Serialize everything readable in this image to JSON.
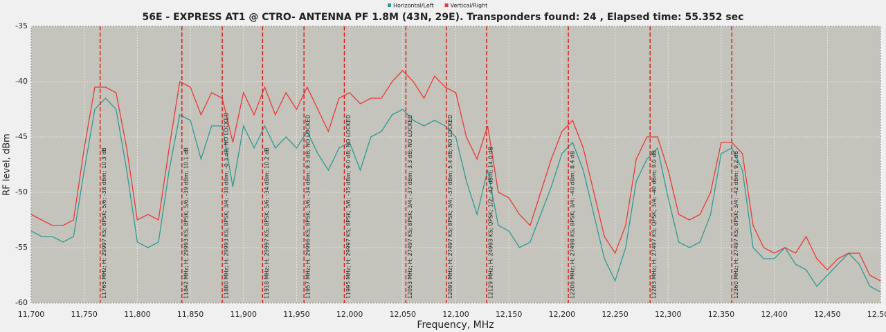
{
  "chart_data": {
    "type": "line",
    "title": "56E - EXPRESS AT1 @ CTRO- ANTENNA PF 1.8M (43N, 29E). Transponders found: 24 , Elapsed time: 55.352 sec",
    "x_label": "Frequency, MHz",
    "y_label": "RF level, dBm",
    "x": [
      11700,
      11710,
      11720,
      11730,
      11740,
      11750,
      11760,
      11770,
      11780,
      11790,
      11800,
      11810,
      11820,
      11830,
      11840,
      11850,
      11860,
      11870,
      11880,
      11890,
      11900,
      11910,
      11920,
      11930,
      11940,
      11950,
      11960,
      11970,
      11980,
      11990,
      12000,
      12010,
      12020,
      12030,
      12040,
      12050,
      12060,
      12070,
      12080,
      12090,
      12100,
      12110,
      12120,
      12130,
      12140,
      12150,
      12160,
      12170,
      12180,
      12190,
      12200,
      12210,
      12220,
      12230,
      12240,
      12250,
      12260,
      12270,
      12280,
      12290,
      12300,
      12310,
      12320,
      12330,
      12340,
      12350,
      12360,
      12370,
      12380,
      12390,
      12400,
      12410,
      12420,
      12430,
      12440,
      12450,
      12460,
      12470,
      12480,
      12490,
      12500
    ],
    "series": [
      {
        "name": "Horizontal/Left",
        "color": "#2e9a94",
        "values": [
          -53.5,
          -54,
          -54,
          -54.5,
          -54,
          -48,
          -42.5,
          -41.5,
          -42.5,
          -48,
          -54.5,
          -55,
          -54.5,
          -48,
          -43,
          -43.5,
          -47,
          -44,
          -44,
          -49.5,
          -44,
          -46,
          -44,
          -46,
          -45,
          -46,
          -44.5,
          -46.5,
          -48,
          -46,
          -45.5,
          -48,
          -45,
          -44.5,
          -43,
          -42.5,
          -43.5,
          -44,
          -43.5,
          -44,
          -45,
          -49,
          -52,
          -48,
          -53,
          -53.5,
          -55,
          -54.5,
          -52,
          -49.5,
          -46.5,
          -45.5,
          -48,
          -52,
          -56,
          -58,
          -55,
          -49,
          -47,
          -46,
          -50.5,
          -54.5,
          -55,
          -54.5,
          -52,
          -46.5,
          -46,
          -48,
          -55,
          -56,
          -56,
          -55,
          -56.5,
          -57,
          -58.5,
          -57.5,
          -56.5,
          -55.5,
          -56.5,
          -58.5,
          -59
        ]
      },
      {
        "name": "Vertical/Right",
        "color": "#e8383a",
        "values": [
          -52,
          -52.5,
          -53,
          -53,
          -52.5,
          -46,
          -40.5,
          -40.5,
          -41,
          -46,
          -52.5,
          -52,
          -52.5,
          -46,
          -40,
          -40.5,
          -43,
          -41,
          -41.5,
          -45.5,
          -41,
          -43,
          -40.5,
          -43,
          -41,
          -42.5,
          -40.5,
          -42.5,
          -44.5,
          -41.5,
          -41,
          -42,
          -41.5,
          -41.5,
          -40,
          -39,
          -40,
          -41.5,
          -39.5,
          -40.5,
          -41,
          -45,
          -47,
          -44,
          -50,
          -50.5,
          -52,
          -53,
          -50,
          -47,
          -44.5,
          -43.5,
          -46,
          -50,
          -54,
          -55.5,
          -53,
          -47,
          -45,
          -45,
          -48,
          -52,
          -52.5,
          -52,
          -50,
          -45.5,
          -45.5,
          -46.5,
          -53,
          -55,
          -55.5,
          -55,
          -55.5,
          -54,
          -56,
          -57,
          -56,
          -55.5,
          -55.5,
          -57.5,
          -58
        ]
      }
    ],
    "markers": [
      {
        "freq": 11765,
        "label": "11765 MHz; H; 29997 KS; 8PSK; 5/6; -38 dBm; 10.3 dB"
      },
      {
        "freq": 11842,
        "label": "11842 MHz; H; 29993 KS; 8PSK; 5/6; -39 dBm; 10.1 dB"
      },
      {
        "freq": 11880,
        "label": "11880 MHz; H; 29993 KS; 8PSK; 3/4; -38 dBm; -0.3 dB; NO LOCKED"
      },
      {
        "freq": 11918,
        "label": "11918 MHz; H; 29997 KS; 8PSK; 5/6; -34 dBm; 10.2 dB"
      },
      {
        "freq": 11957,
        "label": "11957 MHz; H; 29996 KS; 8PSK; 5/6; -34 dBm; 9.3 dB; NO LOCKED"
      },
      {
        "freq": 11995,
        "label": "11995 MHz; H; 29997 KS; 8PSK; 5/6; -35 dBm; 9.0 dB; NO LOCKED"
      },
      {
        "freq": 12053,
        "label": "12053 MHz; H; 27497 KS; 8PSK; 3/4; -37 dBm; 3.3 dB; NO LOCKED"
      },
      {
        "freq": 12091,
        "label": "12091 MHz; H; 27497 KS; 8PSK; 3/4; -37 dBm; 5.4 dB; NO LOCKED"
      },
      {
        "freq": 12129,
        "label": "12129 MHz; H; 24993 KS; QPSK; 1/2; -42 dBm; 14.0 dB"
      },
      {
        "freq": 12206,
        "label": "12206 MHz; H; 27498 KS; 8PSK; 3/4; -40 dBm; 8.4 dB"
      },
      {
        "freq": 12283,
        "label": "12283 MHz; H; 27497 KS; QPSK; 3/4; -40 dBm; 9.0 dB"
      },
      {
        "freq": 12360,
        "label": "12360 MHz; H; 27497 KS; 8PSK; 3/4; -42 dBm; 9.2 dB"
      }
    ],
    "marker_color": "#d01818",
    "xlim": [
      11700,
      12500
    ],
    "xticks": [
      {
        "value": 11700,
        "label": "11,700"
      },
      {
        "value": 11750,
        "label": "11,750"
      },
      {
        "value": 11800,
        "label": "11,800"
      },
      {
        "value": 11850,
        "label": "11,850"
      },
      {
        "value": 11900,
        "label": "11,900"
      },
      {
        "value": 11950,
        "label": "11,950"
      },
      {
        "value": 12000,
        "label": "12,000"
      },
      {
        "value": 12050,
        "label": "12,050"
      },
      {
        "value": 12100,
        "label": "12,100"
      },
      {
        "value": 12150,
        "label": "12,150"
      },
      {
        "value": 12200,
        "label": "12,200"
      },
      {
        "value": 12250,
        "label": "12,250"
      },
      {
        "value": 12300,
        "label": "12,300"
      },
      {
        "value": 12350,
        "label": "12,350"
      },
      {
        "value": 12400,
        "label": "12,400"
      },
      {
        "value": 12450,
        "label": "12,450"
      },
      {
        "value": 12500,
        "label": "12,500"
      }
    ],
    "ylim": [
      -60,
      -35
    ],
    "yticks": [
      -35,
      -40,
      -45,
      -50,
      -55,
      -60
    ],
    "grid": true
  }
}
